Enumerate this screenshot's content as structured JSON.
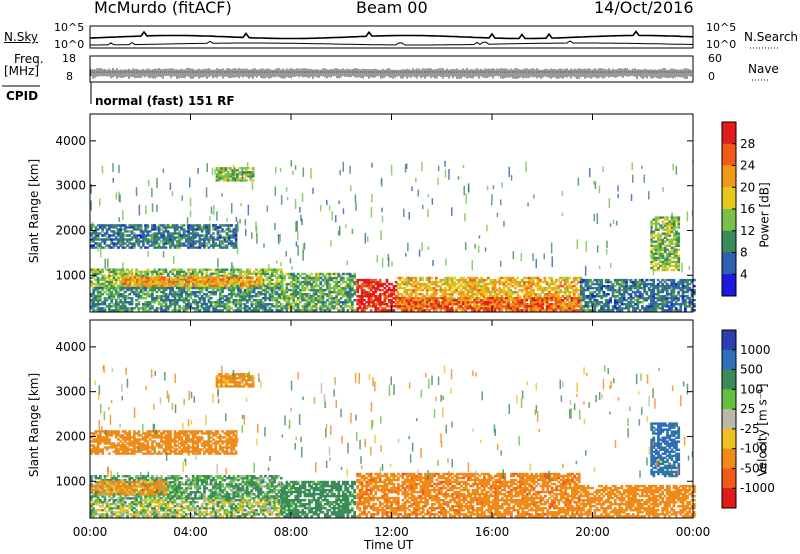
{
  "header": {
    "station": "McMurdo (fitACF)",
    "beam": "Beam 00",
    "date": "14/Oct/2016"
  },
  "status": {
    "nsky_label": "N.Sky",
    "nsky_ticks": [
      "10^5",
      "10^0"
    ],
    "nsearch_label": "N.Search",
    "nsearch_ticks": [
      "10^5",
      "10^0"
    ],
    "freq_label": "Freq.",
    "freq_unit": "[MHz]",
    "freq_ticks": [
      "18",
      "8"
    ],
    "nave_label": "Nave",
    "nave_ticks": [
      "60",
      "0"
    ],
    "cpid_label": "CPID",
    "cpid_value": "normal (fast) 151 RF"
  },
  "chart_data": [
    {
      "type": "heatmap",
      "name": "power",
      "ylabel": "Slant Range [km]",
      "xlabel": "Time UT",
      "xlim": [
        0,
        24
      ],
      "ylim": [
        180,
        4600
      ],
      "y_ticks": [
        "4000",
        "3000",
        "2000",
        "1000"
      ],
      "x_ticks": [
        "00:00",
        "04:00",
        "08:00",
        "12:00",
        "16:00",
        "20:00",
        "00:00"
      ],
      "colorbar": {
        "label": "Power [dB]",
        "ticks": [
          "28",
          "24",
          "20",
          "16",
          "12",
          "8",
          "4"
        ],
        "colors": [
          "#e21a1a",
          "#f25a18",
          "#f09a1a",
          "#e6c81c",
          "#78c24a",
          "#3a8a5a",
          "#2f5fb0",
          "#1a1ae0"
        ]
      },
      "regions": [
        {
          "t0": 0.0,
          "t1": 7.6,
          "r0": 700,
          "r1": 1150,
          "level": 12
        },
        {
          "t0": 0.0,
          "t1": 7.6,
          "r0": 200,
          "r1": 700,
          "level": 8
        },
        {
          "t0": 1.2,
          "t1": 6.8,
          "r0": 750,
          "r1": 950,
          "level": 20
        },
        {
          "t0": 7.6,
          "t1": 10.5,
          "r0": 200,
          "r1": 1050,
          "level": 10
        },
        {
          "t0": 10.6,
          "t1": 12.2,
          "r0": 200,
          "r1": 900,
          "level": 28
        },
        {
          "t0": 12.2,
          "t1": 19.5,
          "r0": 200,
          "r1": 950,
          "level": 18
        },
        {
          "t0": 12.2,
          "t1": 19.5,
          "r0": 200,
          "r1": 500,
          "level": 24
        },
        {
          "t0": 0.0,
          "t1": 5.8,
          "r0": 1600,
          "r1": 2100,
          "level": 6
        },
        {
          "t0": 5.0,
          "t1": 6.5,
          "r0": 3100,
          "r1": 3400,
          "level": 12
        },
        {
          "t0": 22.3,
          "t1": 23.4,
          "r0": 1100,
          "r1": 2300,
          "level": 12
        },
        {
          "t0": 19.5,
          "t1": 24.0,
          "r0": 200,
          "r1": 900,
          "level": 6
        }
      ]
    },
    {
      "type": "heatmap",
      "name": "velocity",
      "ylabel": "Slant Range [km]",
      "xlabel": "Time UT",
      "xlim": [
        0,
        24
      ],
      "ylim": [
        180,
        4600
      ],
      "y_ticks": [
        "4000",
        "3000",
        "2000",
        "1000"
      ],
      "x_ticks": [
        "00:00",
        "04:00",
        "08:00",
        "12:00",
        "16:00",
        "20:00",
        "00:00"
      ],
      "colorbar": {
        "label": "Velocity [m s⁻¹]",
        "ticks": [
          "1000",
          "500",
          "100",
          "25",
          "-25",
          "-100",
          "-500",
          "-1000"
        ],
        "colors": [
          "#2a3fb0",
          "#2e6fb8",
          "#3a8a5a",
          "#66c040",
          "#b9b9a6",
          "#f0c020",
          "#f08a18",
          "#f25a18",
          "#e21a1a"
        ]
      },
      "regions": [
        {
          "t0": 0.0,
          "t1": 7.6,
          "r0": 600,
          "r1": 1100,
          "level": 120
        },
        {
          "t0": 0.0,
          "t1": 7.6,
          "r0": 200,
          "r1": 600,
          "level": 30
        },
        {
          "t0": 0.0,
          "t1": 3.0,
          "r0": 700,
          "r1": 1000,
          "level": -150
        },
        {
          "t0": 7.6,
          "t1": 10.5,
          "r0": 200,
          "r1": 1000,
          "level": 200
        },
        {
          "t0": 10.6,
          "t1": 19.5,
          "r0": 200,
          "r1": 1150,
          "level": -400
        },
        {
          "t0": 0.0,
          "t1": 5.8,
          "r0": 1600,
          "r1": 2100,
          "level": -300
        },
        {
          "t0": 5.0,
          "t1": 6.5,
          "r0": 3100,
          "r1": 3400,
          "level": -200
        },
        {
          "t0": 22.3,
          "t1": 23.4,
          "r0": 1100,
          "r1": 2300,
          "level": 600
        },
        {
          "t0": 19.5,
          "t1": 24.0,
          "r0": 200,
          "r1": 900,
          "level": -300
        }
      ]
    }
  ]
}
